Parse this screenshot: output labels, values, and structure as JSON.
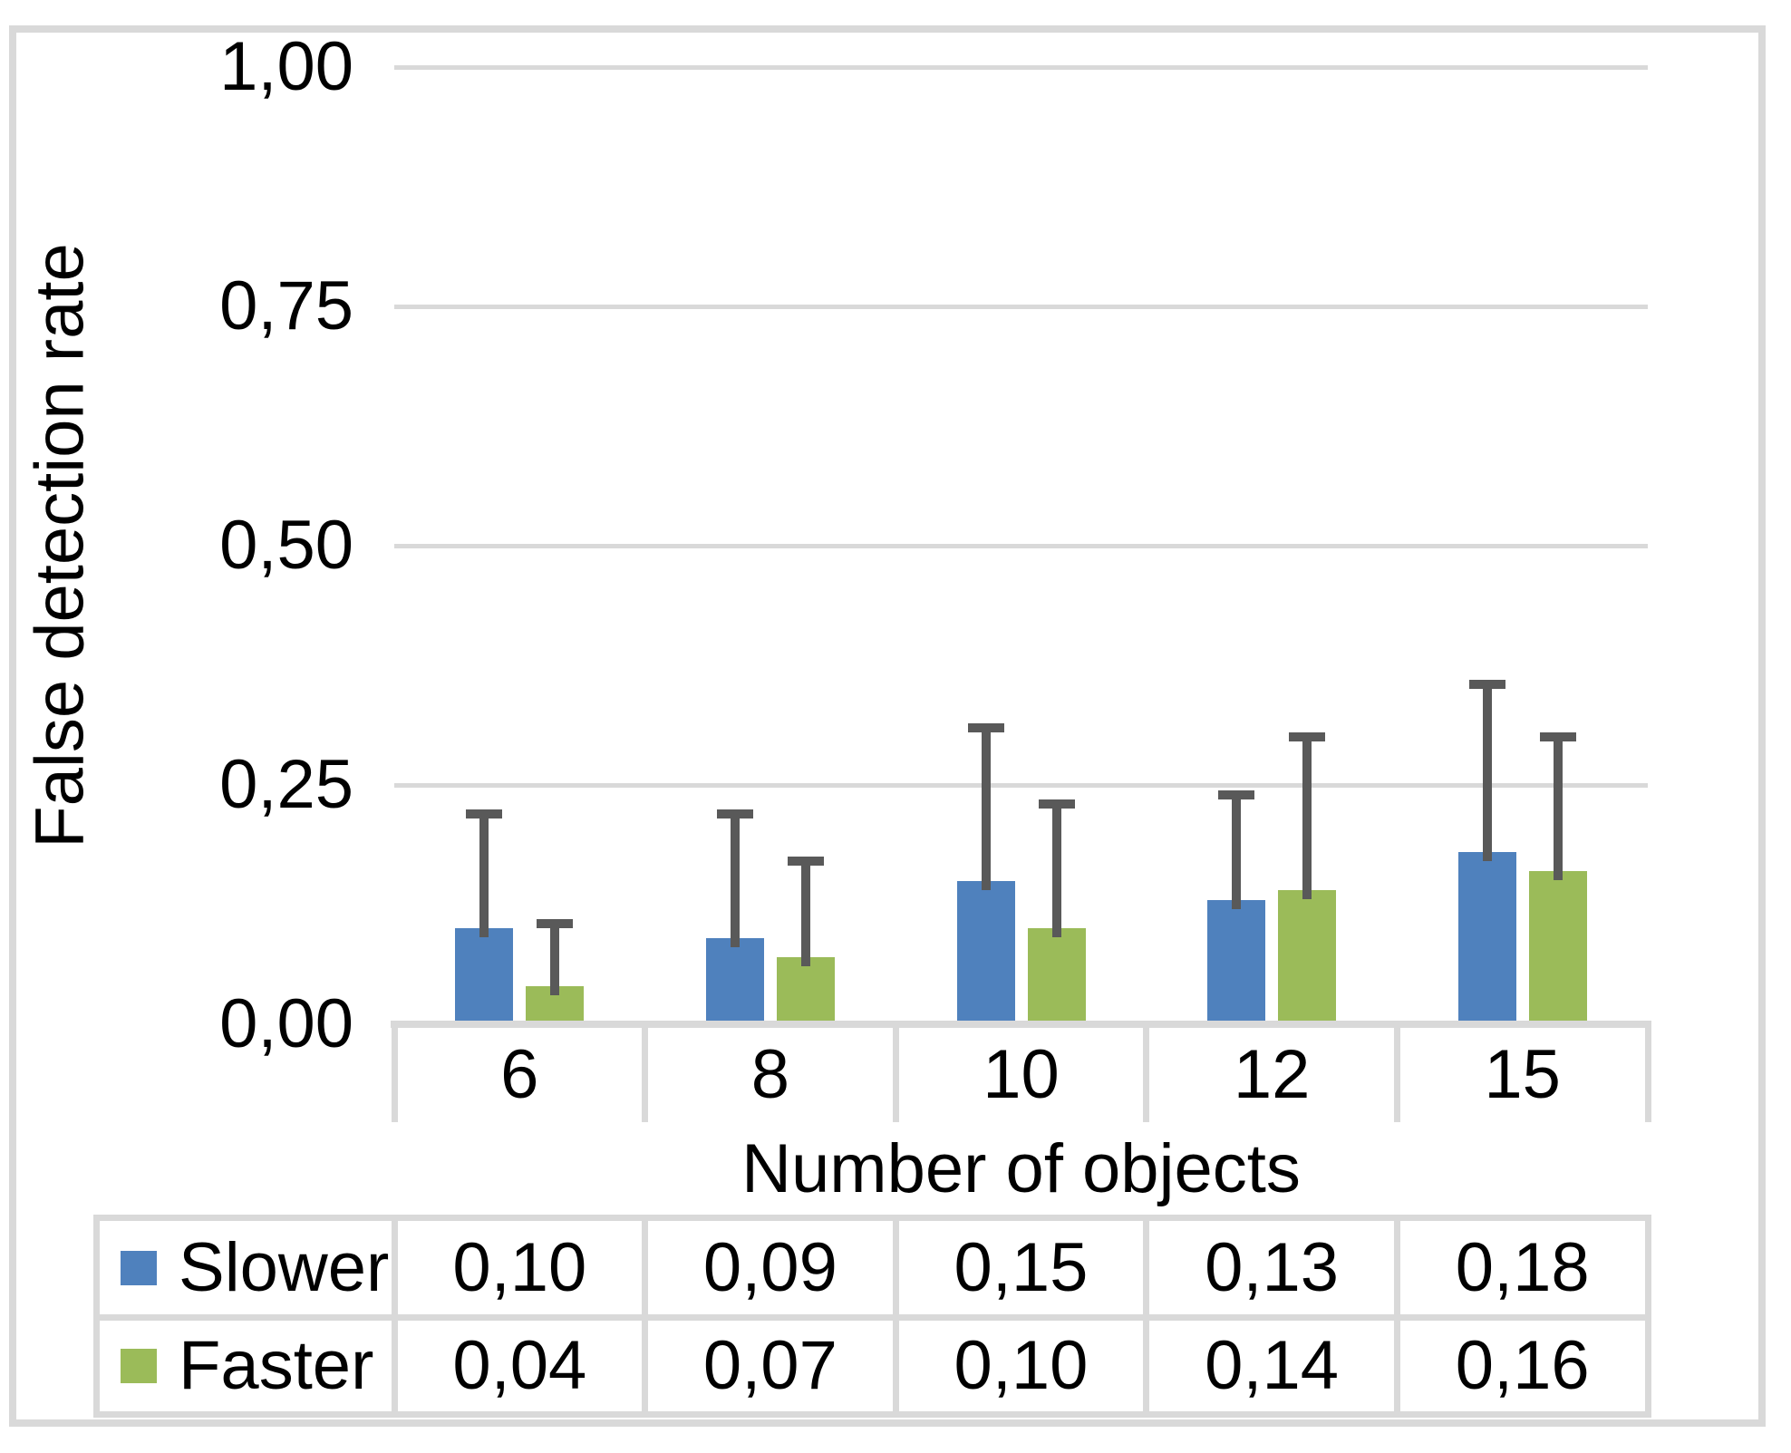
{
  "chart_data": {
    "type": "bar",
    "title": "",
    "ylabel": "False detection rate",
    "xlabel": "Number of objects",
    "categories": [
      "6",
      "8",
      "10",
      "12",
      "15"
    ],
    "series": [
      {
        "name": "Slower",
        "color": "#4F81BD",
        "values": [
          0.1,
          0.09,
          0.15,
          0.13,
          0.18
        ],
        "value_labels": [
          "0,10",
          "0,09",
          "0,15",
          "0,13",
          "0,18"
        ],
        "error_top": [
          0.22,
          0.22,
          0.31,
          0.24,
          0.355
        ]
      },
      {
        "name": "Faster",
        "color": "#9BBB59",
        "values": [
          0.04,
          0.07,
          0.1,
          0.14,
          0.16
        ],
        "value_labels": [
          "0,04",
          "0,07",
          "0,10",
          "0,14",
          "0,16"
        ],
        "error_top": [
          0.105,
          0.17,
          0.23,
          0.3,
          0.3
        ]
      }
    ],
    "y_ticks": [
      {
        "value": 0,
        "label": "0,00"
      },
      {
        "value": 0.25,
        "label": "0,25"
      },
      {
        "value": 0.5,
        "label": "0,50"
      },
      {
        "value": 0.75,
        "label": "0,75"
      },
      {
        "value": 1,
        "label": "1,00"
      }
    ],
    "ylim": [
      0,
      1
    ],
    "grid": true,
    "legend_position": "table-rows-left",
    "colors": {
      "error_bar": "#595959",
      "gridline": "#D9D9D9",
      "table_border": "#D9D9D9",
      "text": "#000000",
      "background": "#FFFFFF"
    }
  }
}
